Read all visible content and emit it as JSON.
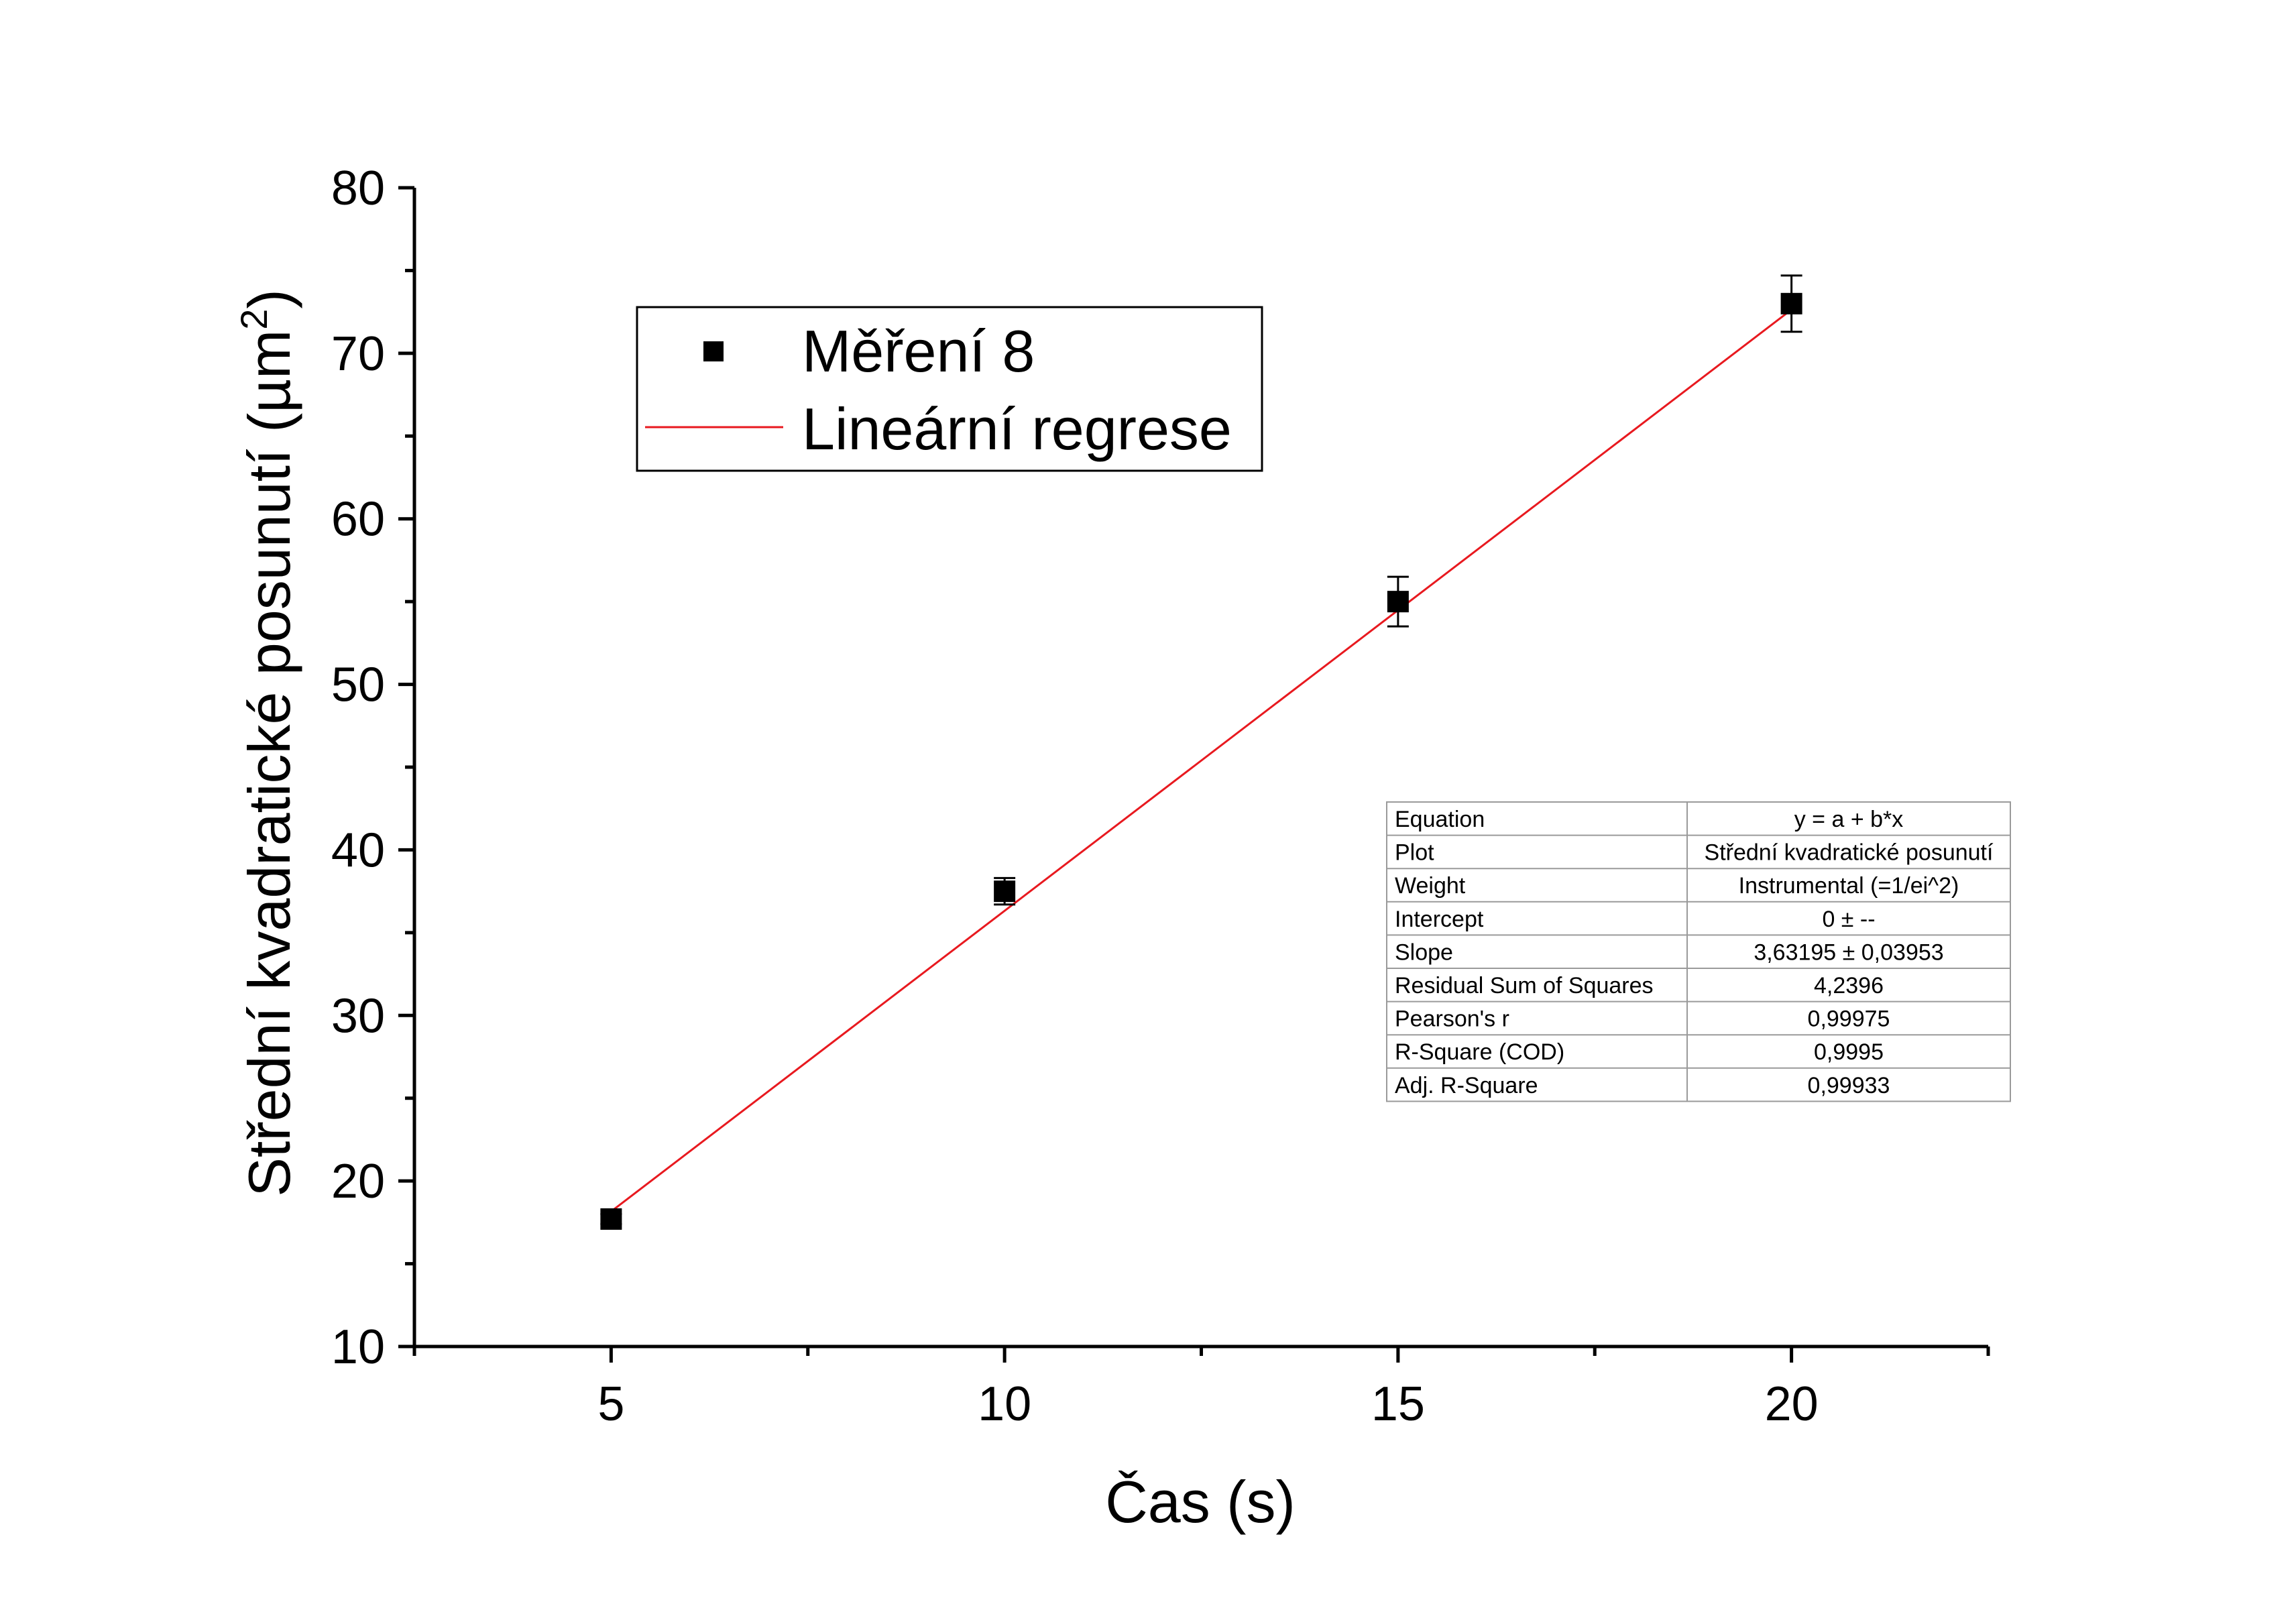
{
  "chart_data": {
    "type": "scatter",
    "title": "",
    "xlabel": "Čas (s)",
    "ylabel_main": "Střední kvadratické posunutí (µm",
    "ylabel_sup": "2",
    "ylabel_end": ")",
    "xlim": [
      2.5,
      22.5
    ],
    "ylim": [
      10,
      80
    ],
    "x_ticks": [
      5,
      10,
      15,
      20
    ],
    "y_ticks": [
      10,
      20,
      30,
      40,
      50,
      60,
      70,
      80
    ],
    "grid": false,
    "legend_position": "top-left",
    "series": [
      {
        "name": "Měření 8",
        "kind": "scatter",
        "marker": "square",
        "color": "#000000",
        "x": [
          5,
          10,
          15,
          20
        ],
        "y": [
          17.7,
          37.5,
          55.0,
          73.0
        ],
        "yerr": [
          0.3,
          0.8,
          1.5,
          1.7
        ]
      },
      {
        "name": "Lineární regrese",
        "kind": "line",
        "color": "#e8191f",
        "slope": 3.63195,
        "intercept": 0,
        "x_range": [
          5,
          20
        ]
      }
    ],
    "stats_table": {
      "rows": [
        [
          "Equation",
          "y = a + b*x"
        ],
        [
          "Plot",
          "Střední kvadratické posunutí"
        ],
        [
          "Weight",
          "Instrumental (=1/ei^2)"
        ],
        [
          "Intercept",
          "0 ± --"
        ],
        [
          "Slope",
          "3,63195 ± 0,03953"
        ],
        [
          "Residual Sum of Squares",
          "4,2396"
        ],
        [
          "Pearson's r",
          "0,99975"
        ],
        [
          "R-Square (COD)",
          "0,9995"
        ],
        [
          "Adj. R-Square",
          "0,99933"
        ]
      ]
    }
  }
}
